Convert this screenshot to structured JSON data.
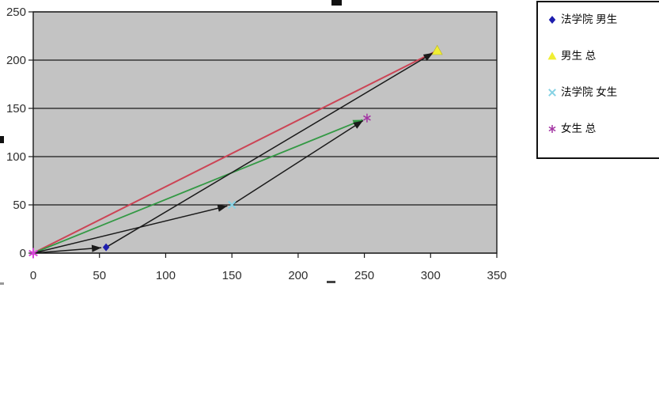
{
  "legend": {
    "entries": [
      {
        "label": "法学院 男生",
        "marker": "diamond",
        "color": "#1e1eae"
      },
      {
        "label": "男生 总",
        "marker": "triangle",
        "color": "#f0ee33"
      },
      {
        "label": "法学院 女生",
        "marker": "x",
        "color": "#86d2e4"
      },
      {
        "label": "女生 总",
        "marker": "asterisk",
        "color": "#a335a3"
      }
    ]
  },
  "chart_data": {
    "type": "scatter",
    "title": "",
    "xlabel": "",
    "ylabel": "",
    "xlim": [
      0,
      350
    ],
    "ylim": [
      0,
      250
    ],
    "x_ticks": [
      "0",
      "50",
      "100",
      "150",
      "200",
      "250",
      "300",
      "350"
    ],
    "y_ticks": [
      "0",
      "50",
      "100",
      "150",
      "200",
      "250"
    ],
    "grid": "horizontal",
    "plot_bg": "#c3c3c3",
    "gridline_color": "#1a1a1a",
    "legend_position": "right",
    "series": [
      {
        "name": "法学院 男生",
        "marker": "diamond",
        "color": "#1e1eae",
        "points": [
          [
            55,
            6
          ]
        ]
      },
      {
        "name": "男生 总",
        "marker": "triangle",
        "color": "#f0ee33",
        "points": [
          [
            305,
            210
          ]
        ]
      },
      {
        "name": "法学院 女生",
        "marker": "x",
        "color": "#86d2e4",
        "points": [
          [
            150,
            50
          ]
        ]
      },
      {
        "name": "女生 总",
        "marker": "asterisk",
        "color": "#a335a3",
        "points": [
          [
            252,
            140
          ]
        ]
      }
    ],
    "origin_marker": {
      "marker": "asterisk",
      "color": "#d645d6",
      "point": [
        0,
        0
      ]
    },
    "connectors": [
      {
        "color": "#cc4455",
        "from": [
          0,
          0
        ],
        "to": [
          305,
          210
        ],
        "arrow": false,
        "width": 2
      },
      {
        "color": "#339944",
        "from": [
          0,
          0
        ],
        "to": [
          252,
          140
        ],
        "arrow": true,
        "width": 1.8
      },
      {
        "color": "#1a1a1a",
        "from": [
          0,
          0
        ],
        "to": [
          55,
          6
        ],
        "arrow": true,
        "width": 1.5
      },
      {
        "color": "#1a1a1a",
        "from": [
          55,
          6
        ],
        "to": [
          305,
          210
        ],
        "arrow": true,
        "width": 1.5
      },
      {
        "color": "#1a1a1a",
        "from": [
          0,
          0
        ],
        "to": [
          150,
          50
        ],
        "arrow": true,
        "width": 1.5
      },
      {
        "color": "#1a1a1a",
        "from": [
          150,
          50
        ],
        "to": [
          252,
          140
        ],
        "arrow": true,
        "width": 1.5
      }
    ]
  }
}
